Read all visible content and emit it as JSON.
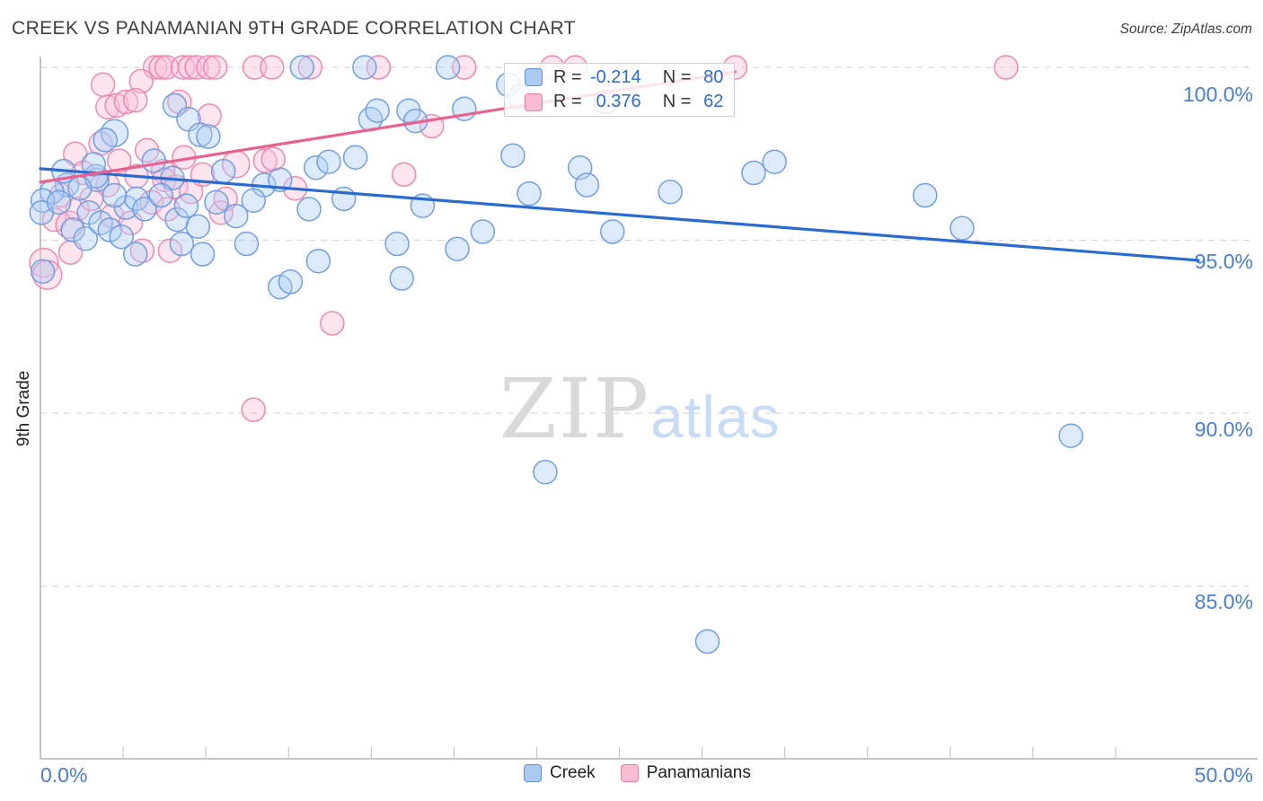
{
  "title": "CREEK VS PANAMANIAN 9TH GRADE CORRELATION CHART",
  "source": "Source: ZipAtlas.com",
  "y_axis": {
    "label": "9th Grade",
    "ticks": [
      "100.0%",
      "95.0%",
      "90.0%",
      "85.0%"
    ]
  },
  "x_axis": {
    "ticks": [
      "0.0%",
      "50.0%"
    ]
  },
  "stats_legend": {
    "rows": [
      {
        "r_label": "R =",
        "r_value": "-0.214",
        "n_label": "N =",
        "n_value": "80"
      },
      {
        "r_label": "R =",
        "r_value": "0.376",
        "n_label": "N =",
        "n_value": "62"
      }
    ]
  },
  "bottom_legend": {
    "items": [
      {
        "label": "Creek"
      },
      {
        "label": "Panamanians"
      }
    ]
  },
  "watermark": {
    "zip": "ZIP",
    "atlas": "atlas"
  },
  "colors": {
    "creek_fill": "#aecdf4",
    "creek_stroke": "#6b9ae0",
    "panamanian_fill": "#f8c0d8",
    "panamanian_stroke": "#f083ad",
    "creek_trend": "#2a6bd2",
    "panamanian_trend": "#e8618f",
    "gridline": "#d9d9d9",
    "axis": "#a0a4a8",
    "tick_label": "#4a7ed0"
  },
  "chart_data": {
    "type": "scatter",
    "title": "CREEK VS PANAMANIAN 9TH GRADE CORRELATION CHART",
    "xlabel": "",
    "ylabel": "9th Grade",
    "x_unit": "%",
    "y_unit": "%",
    "xlim": [
      0,
      50
    ],
    "ylim": [
      83,
      101
    ],
    "gridlines_y": [
      100,
      95,
      90,
      85
    ],
    "grid": "dashed-horizontal",
    "legend_position": "bottom-center",
    "series": [
      {
        "name": "Creek",
        "R": -0.214,
        "N": 80,
        "points": [
          [
            11.3,
            100
          ],
          [
            14.0,
            100
          ],
          [
            17.6,
            100
          ],
          [
            20.2,
            99.5
          ],
          [
            20.7,
            99.15
          ],
          [
            24.4,
            99.0
          ],
          [
            14.25,
            98.5
          ],
          [
            14.55,
            98.75
          ],
          [
            15.9,
            98.75
          ],
          [
            16.2,
            98.45
          ],
          [
            18.3,
            98.8
          ],
          [
            5.8,
            98.9
          ],
          [
            6.4,
            98.5
          ],
          [
            6.9,
            98.05
          ],
          [
            7.25,
            98.0
          ],
          [
            3.2,
            98.1,
            15
          ],
          [
            2.8,
            97.9
          ],
          [
            20.4,
            97.45
          ],
          [
            23.3,
            97.1
          ],
          [
            13.6,
            97.4
          ],
          [
            11.9,
            97.1
          ],
          [
            12.45,
            97.27
          ],
          [
            30.8,
            96.95
          ],
          [
            31.7,
            97.27
          ],
          [
            4.9,
            97.3
          ],
          [
            5.7,
            96.8
          ],
          [
            21.1,
            96.35
          ],
          [
            23.6,
            96.6
          ],
          [
            27.2,
            96.4
          ],
          [
            38.2,
            96.3
          ],
          [
            9.65,
            96.6
          ],
          [
            10.35,
            96.75
          ],
          [
            9.2,
            96.15
          ],
          [
            3.7,
            95.95
          ],
          [
            4.15,
            96.2
          ],
          [
            3.2,
            96.3
          ],
          [
            2.45,
            96.75
          ],
          [
            1.15,
            96.6
          ],
          [
            0.5,
            96.4
          ],
          [
            0.1,
            96.15
          ],
          [
            2.4,
            96.85
          ],
          [
            24.7,
            95.25
          ],
          [
            39.8,
            95.35
          ],
          [
            19.1,
            95.25
          ],
          [
            15.4,
            94.9
          ],
          [
            0.05,
            95.8
          ],
          [
            1.4,
            95.3
          ],
          [
            1.95,
            95.05
          ],
          [
            8.45,
            95.7
          ],
          [
            18.0,
            94.75
          ],
          [
            4.1,
            94.6
          ],
          [
            0.1,
            94.1
          ],
          [
            10.35,
            93.65
          ],
          [
            10.8,
            93.8
          ],
          [
            15.6,
            93.9
          ],
          [
            21.8,
            88.3
          ],
          [
            44.5,
            89.35
          ],
          [
            28.8,
            83.4
          ],
          [
            0.8,
            96.1
          ],
          [
            1.7,
            96.5
          ],
          [
            2.1,
            95.8
          ],
          [
            2.6,
            95.5
          ],
          [
            3.0,
            95.3
          ],
          [
            3.5,
            95.1
          ],
          [
            4.5,
            95.9
          ],
          [
            5.2,
            96.3
          ],
          [
            5.9,
            95.6
          ],
          [
            6.3,
            96.0
          ],
          [
            6.8,
            95.4
          ],
          [
            7.6,
            96.1
          ],
          [
            2.3,
            97.2
          ],
          [
            1.0,
            97.0
          ],
          [
            7.9,
            97.0
          ],
          [
            8.9,
            94.9
          ],
          [
            6.1,
            94.9
          ],
          [
            7.0,
            94.6
          ],
          [
            12.0,
            94.4
          ],
          [
            13.1,
            96.2
          ],
          [
            16.5,
            96.0
          ],
          [
            11.6,
            95.9
          ]
        ]
      },
      {
        "name": "Panamanians",
        "R": 0.376,
        "N": 62,
        "points": [
          [
            4.95,
            100
          ],
          [
            5.2,
            100
          ],
          [
            5.45,
            100
          ],
          [
            6.15,
            100
          ],
          [
            6.45,
            100
          ],
          [
            6.75,
            100
          ],
          [
            7.25,
            100
          ],
          [
            7.55,
            100
          ],
          [
            9.25,
            100
          ],
          [
            10.0,
            100
          ],
          [
            11.65,
            100
          ],
          [
            14.6,
            100
          ],
          [
            18.3,
            100
          ],
          [
            22.1,
            100
          ],
          [
            23.1,
            100
          ],
          [
            30.0,
            100
          ],
          [
            41.7,
            100
          ],
          [
            2.7,
            99.5
          ],
          [
            4.35,
            99.6
          ],
          [
            2.9,
            98.85
          ],
          [
            3.3,
            98.9
          ],
          [
            3.7,
            99.0
          ],
          [
            4.1,
            99.05
          ],
          [
            6.0,
            99.0
          ],
          [
            7.3,
            98.6
          ],
          [
            16.9,
            98.3
          ],
          [
            1.5,
            97.5
          ],
          [
            4.6,
            97.6
          ],
          [
            5.3,
            97.0
          ],
          [
            8.45,
            97.2,
            15
          ],
          [
            9.7,
            97.3
          ],
          [
            10.05,
            97.35
          ],
          [
            15.7,
            96.9
          ],
          [
            1.85,
            96.95
          ],
          [
            2.9,
            96.6
          ],
          [
            4.15,
            96.85
          ],
          [
            5.35,
            96.75
          ],
          [
            5.85,
            96.55
          ],
          [
            0.6,
            95.6
          ],
          [
            1.25,
            95.45,
            15
          ],
          [
            0.15,
            94.35,
            16
          ],
          [
            0.3,
            94.0,
            16
          ],
          [
            1.3,
            94.65
          ],
          [
            4.4,
            94.7
          ],
          [
            5.6,
            94.7
          ],
          [
            9.2,
            90.1
          ],
          [
            12.6,
            92.6
          ],
          [
            0.9,
            96.3
          ],
          [
            1.6,
            95.9
          ],
          [
            2.2,
            96.2
          ],
          [
            3.1,
            95.7
          ],
          [
            3.9,
            95.5
          ],
          [
            4.8,
            96.1
          ],
          [
            5.5,
            95.9
          ],
          [
            6.5,
            96.4
          ],
          [
            7.0,
            96.9
          ],
          [
            7.8,
            95.8
          ],
          [
            2.6,
            97.8
          ],
          [
            3.4,
            97.3
          ],
          [
            6.2,
            97.4
          ],
          [
            8.0,
            96.2
          ],
          [
            11.0,
            96.5
          ]
        ]
      }
    ],
    "trend_lines": [
      {
        "series": "Creek",
        "x0": 0,
        "y0": 97.07,
        "x1": 50,
        "y1": 94.42
      },
      {
        "series": "Panamanians",
        "x0": 0,
        "y0": 96.68,
        "x1": 30,
        "y1": 99.87
      }
    ]
  }
}
